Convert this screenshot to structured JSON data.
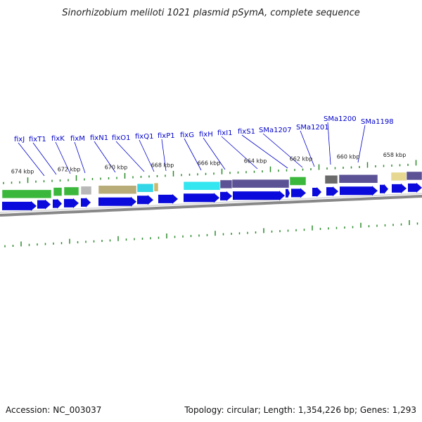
{
  "title": "Sinorhizobium meliloti 1021 plasmid pSymA, complete sequence",
  "footer": {
    "accession": "Accession: NC_003037",
    "summary": "Topology: circular; Length: 1,354,226 bp; Genes: 1,293"
  },
  "colors": {
    "background": "#ffffff",
    "backbone": "#888888",
    "tick": "#2a8a2a",
    "cds": "#0a0adc",
    "label_line": "#0000cc"
  },
  "chart_data": {
    "type": "genome-map",
    "topology": "circular",
    "position_ticks_kbp": [
      "674 kbp",
      "672 kbp",
      "670 kbp",
      "668 kbp",
      "666 kbp",
      "664 kbp",
      "662 kbp",
      "660 kbp",
      "658 kbp"
    ],
    "gene_labels": [
      "fixJ",
      "fixT1",
      "fixK",
      "fixM",
      "fixN1",
      "fixO1",
      "fixQ1",
      "fixP1",
      "fixG",
      "fixH",
      "fixI1",
      "fixS1",
      "SMa1207",
      "SMa1201",
      "SMa1200",
      "SMa1198"
    ]
  }
}
